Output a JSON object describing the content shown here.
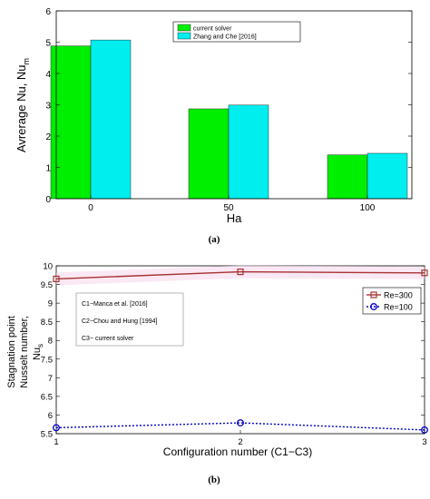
{
  "chart_data": [
    {
      "type": "bar",
      "categories": [
        "0",
        "50",
        "100"
      ],
      "series": [
        {
          "name": "current solver",
          "values": [
            4.88,
            2.87,
            1.4
          ],
          "color": "#00ee00"
        },
        {
          "name": "Zhang and Che [2016]",
          "values": [
            5.07,
            2.99,
            1.45
          ],
          "color": "#00eeee"
        }
      ],
      "xlabel": "Ha",
      "ylabel_main": "Avrerage Nu, Nu",
      "ylabel_sub": "m",
      "ylim": [
        0,
        6
      ],
      "yticks": [
        "0",
        "1",
        "2",
        "3",
        "4",
        "5",
        "6"
      ],
      "legend_position": "top-center",
      "grid": false,
      "caption": "(a)"
    },
    {
      "type": "line",
      "x": [
        1,
        2,
        3
      ],
      "xticks": [
        "1",
        "2",
        "3"
      ],
      "series": [
        {
          "name": "Re=300",
          "values": [
            9.65,
            9.84,
            9.81
          ],
          "color": "#a83232",
          "marker": "square"
        },
        {
          "name": "Re=100",
          "values": [
            5.66,
            5.79,
            5.6
          ],
          "color": "#0000cc",
          "marker": "circle"
        }
      ],
      "xlabel": "Configuration number (C1−C3)",
      "ylabel_lines": [
        "Stagnation point",
        "Nusselt number,",
        "Nu"
      ],
      "ylabel_sub": "s",
      "ylim": [
        5.5,
        10
      ],
      "yticks": [
        "5.5",
        "6",
        "6.5",
        "7",
        "7.5",
        "8",
        "8.5",
        "9",
        "9.5",
        "10"
      ],
      "legend_position": "top-right",
      "notes": [
        "C1−Manca et al. [2016]",
        "C2−Chou and Hung [1994]",
        "C3− current solver"
      ],
      "grid": false,
      "caption": "(b)"
    }
  ]
}
